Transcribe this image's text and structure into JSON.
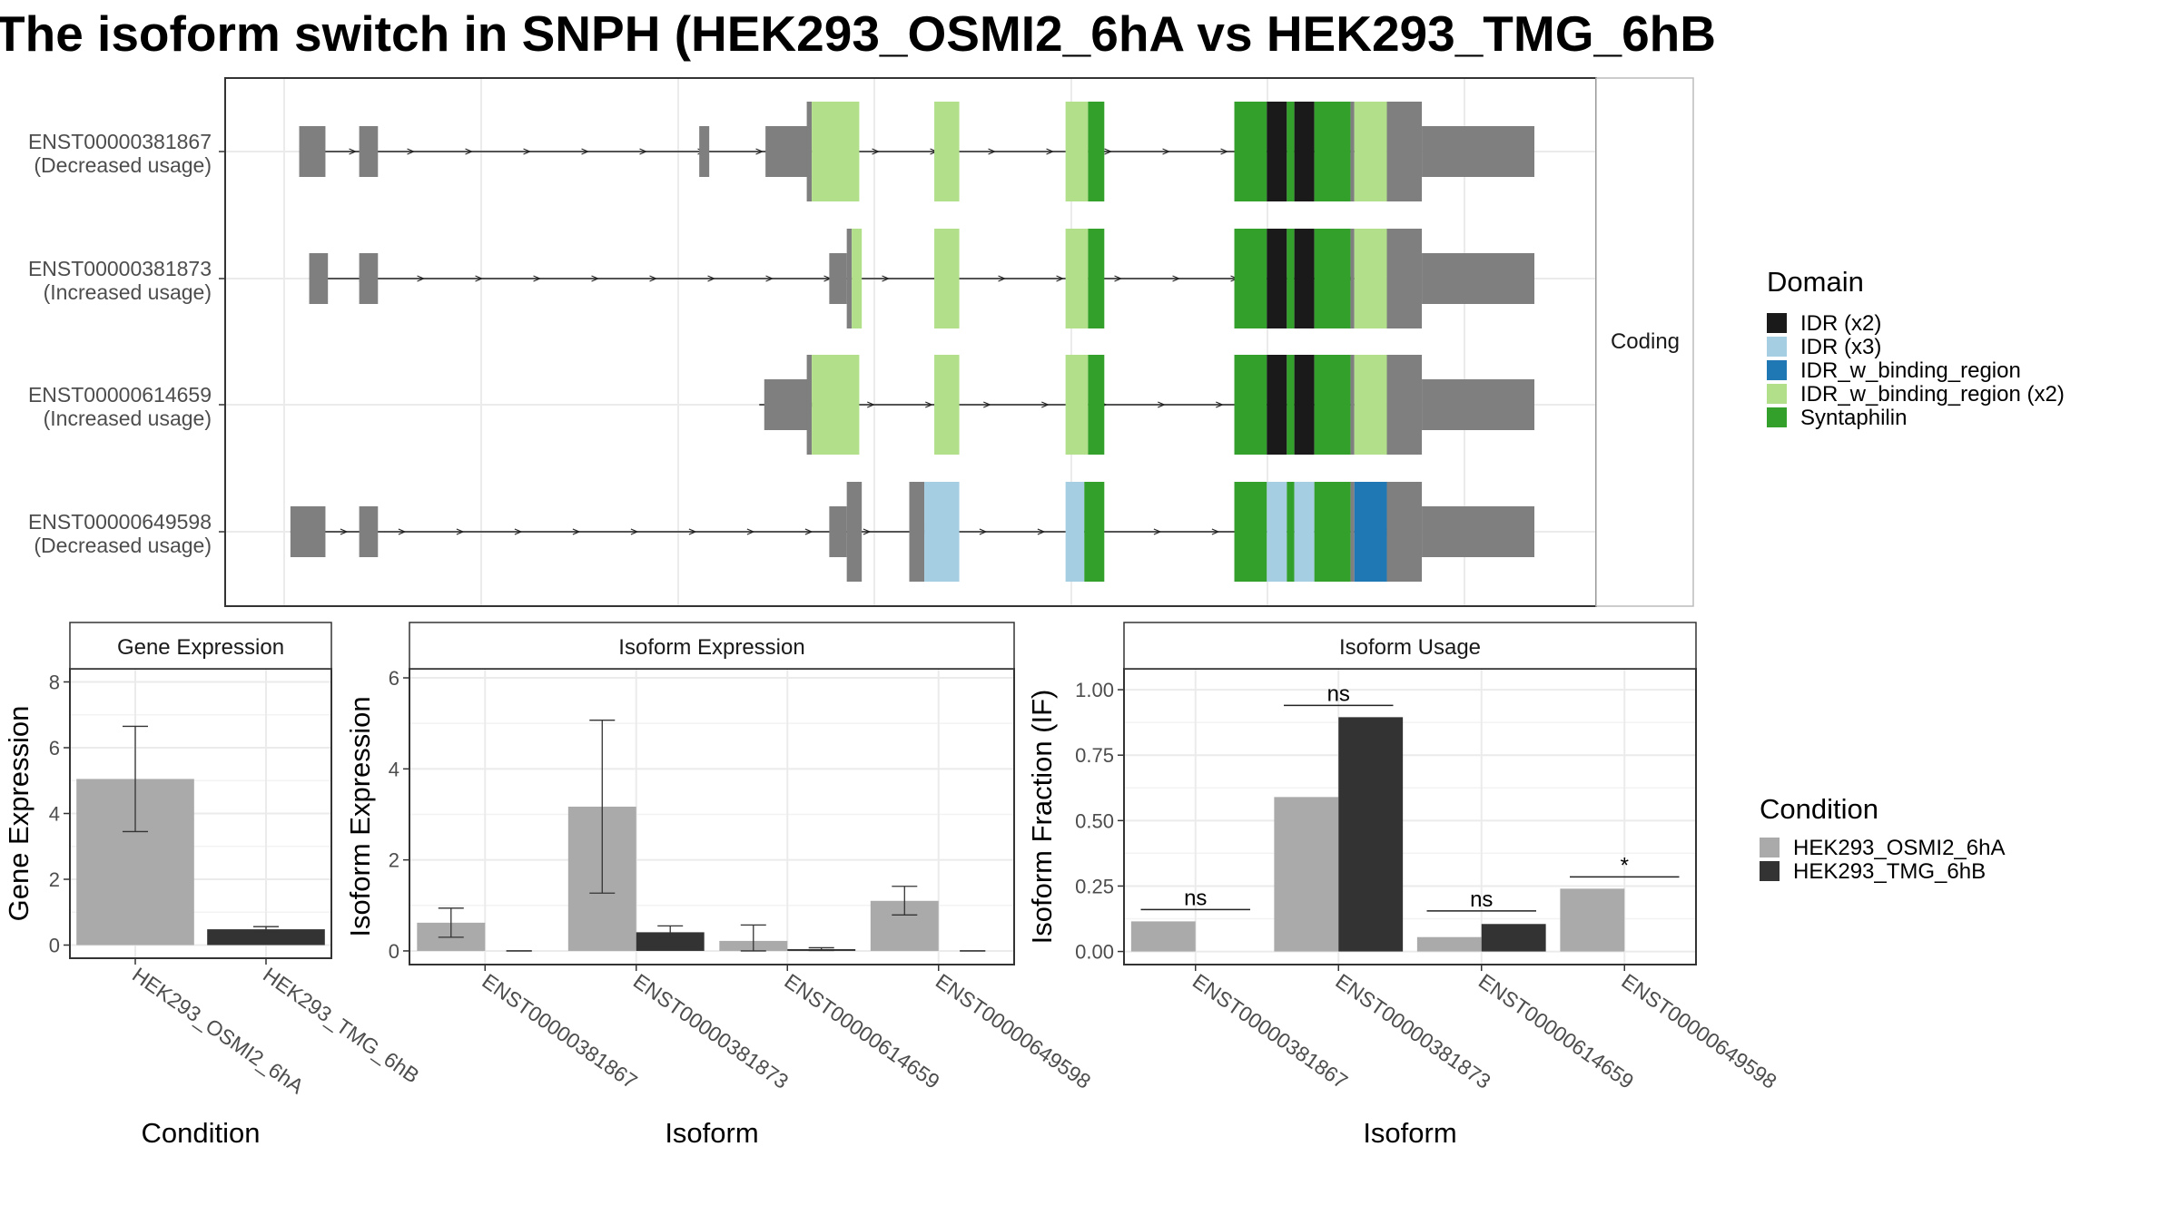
{
  "title": "The isoform switch in SNPH (HEK293_OSMI2_6hA vs HEK293_TMG_6hB",
  "colors": {
    "intron": "#222222",
    "utr": "#7f7f7f",
    "cond_a": "#aaaaaa",
    "cond_b": "#333333",
    "grid": "#ebebeb",
    "panel_border": "#333333",
    "strip_fill": "#ffffff"
  },
  "structure": {
    "facet_label": "Coding",
    "legend_title": "Domain",
    "domains": [
      {
        "name": "IDR (x2)",
        "color": "#1a1a1a"
      },
      {
        "name": "IDR (x3)",
        "color": "#a6cee3"
      },
      {
        "name": "IDR_w_binding_region",
        "color": "#1f78b4"
      },
      {
        "name": "IDR_w_binding_region (x2)",
        "color": "#b2df8a"
      },
      {
        "name": "Syntaphilin",
        "color": "#33a02c"
      }
    ],
    "transcripts": [
      {
        "id": "ENST00000381867",
        "usage": "(Decreased usage)",
        "intron_range": [
          0.012,
          0.91
        ],
        "segments": [
          {
            "type": "utr",
            "start": 0.012,
            "end": 0.033
          },
          {
            "type": "utr",
            "start": 0.06,
            "end": 0.075
          },
          {
            "type": "utr",
            "start": 0.332,
            "end": 0.34
          },
          {
            "type": "utr",
            "start": 0.385,
            "end": 0.42
          },
          {
            "type": "cds",
            "start": 0.418,
            "end": 0.422,
            "domain": "utr"
          },
          {
            "type": "cds",
            "start": 0.422,
            "end": 0.46,
            "domain": "IDR_w_binding_region (x2)"
          },
          {
            "type": "cds",
            "start": 0.52,
            "end": 0.54,
            "domain": "IDR_w_binding_region (x2)"
          },
          {
            "type": "cds",
            "start": 0.625,
            "end": 0.643,
            "domain": "IDR_w_binding_region (x2)"
          },
          {
            "type": "cds",
            "start": 0.643,
            "end": 0.656,
            "domain": "Syntaphilin"
          },
          {
            "type": "cds",
            "start": 0.76,
            "end": 0.786,
            "domain": "Syntaphilin"
          },
          {
            "type": "cds",
            "start": 0.786,
            "end": 0.802,
            "domain": "IDR (x2)"
          },
          {
            "type": "cds",
            "start": 0.802,
            "end": 0.808,
            "domain": "Syntaphilin"
          },
          {
            "type": "cds",
            "start": 0.808,
            "end": 0.824,
            "domain": "IDR (x2)"
          },
          {
            "type": "cds",
            "start": 0.824,
            "end": 0.853,
            "domain": "Syntaphilin"
          },
          {
            "type": "cds",
            "start": 0.853,
            "end": 0.856,
            "domain": "utr"
          },
          {
            "type": "cds",
            "start": 0.856,
            "end": 0.882,
            "domain": "IDR_w_binding_region (x2)"
          },
          {
            "type": "cds",
            "start": 0.882,
            "end": 0.91,
            "domain": "utr"
          },
          {
            "type": "utr",
            "start": 0.91,
            "end": 1.0
          }
        ]
      },
      {
        "id": "ENST00000381873",
        "usage": "(Increased usage)",
        "intron_range": [
          0.02,
          0.91
        ],
        "segments": [
          {
            "type": "utr",
            "start": 0.02,
            "end": 0.035
          },
          {
            "type": "utr",
            "start": 0.06,
            "end": 0.075
          },
          {
            "type": "utr",
            "start": 0.436,
            "end": 0.45
          },
          {
            "type": "cds",
            "start": 0.45,
            "end": 0.454,
            "domain": "utr"
          },
          {
            "type": "cds",
            "start": 0.454,
            "end": 0.462,
            "domain": "IDR_w_binding_region (x2)"
          },
          {
            "type": "cds",
            "start": 0.52,
            "end": 0.54,
            "domain": "IDR_w_binding_region (x2)"
          },
          {
            "type": "cds",
            "start": 0.625,
            "end": 0.643,
            "domain": "IDR_w_binding_region (x2)"
          },
          {
            "type": "cds",
            "start": 0.643,
            "end": 0.656,
            "domain": "Syntaphilin"
          },
          {
            "type": "cds",
            "start": 0.76,
            "end": 0.786,
            "domain": "Syntaphilin"
          },
          {
            "type": "cds",
            "start": 0.786,
            "end": 0.802,
            "domain": "IDR (x2)"
          },
          {
            "type": "cds",
            "start": 0.802,
            "end": 0.808,
            "domain": "Syntaphilin"
          },
          {
            "type": "cds",
            "start": 0.808,
            "end": 0.824,
            "domain": "IDR (x2)"
          },
          {
            "type": "cds",
            "start": 0.824,
            "end": 0.853,
            "domain": "Syntaphilin"
          },
          {
            "type": "cds",
            "start": 0.853,
            "end": 0.856,
            "domain": "utr"
          },
          {
            "type": "cds",
            "start": 0.856,
            "end": 0.882,
            "domain": "IDR_w_binding_region (x2)"
          },
          {
            "type": "cds",
            "start": 0.882,
            "end": 0.91,
            "domain": "utr"
          },
          {
            "type": "utr",
            "start": 0.91,
            "end": 1.0
          }
        ]
      },
      {
        "id": "ENST00000614659",
        "usage": "(Increased usage)",
        "intron_range": [
          0.38,
          0.91
        ],
        "segments": [
          {
            "type": "utr",
            "start": 0.384,
            "end": 0.42
          },
          {
            "type": "cds",
            "start": 0.418,
            "end": 0.422,
            "domain": "utr"
          },
          {
            "type": "cds",
            "start": 0.422,
            "end": 0.46,
            "domain": "IDR_w_binding_region (x2)"
          },
          {
            "type": "cds",
            "start": 0.52,
            "end": 0.54,
            "domain": "IDR_w_binding_region (x2)"
          },
          {
            "type": "cds",
            "start": 0.625,
            "end": 0.643,
            "domain": "IDR_w_binding_region (x2)"
          },
          {
            "type": "cds",
            "start": 0.643,
            "end": 0.656,
            "domain": "Syntaphilin"
          },
          {
            "type": "cds",
            "start": 0.76,
            "end": 0.786,
            "domain": "Syntaphilin"
          },
          {
            "type": "cds",
            "start": 0.786,
            "end": 0.802,
            "domain": "IDR (x2)"
          },
          {
            "type": "cds",
            "start": 0.802,
            "end": 0.808,
            "domain": "Syntaphilin"
          },
          {
            "type": "cds",
            "start": 0.808,
            "end": 0.824,
            "domain": "IDR (x2)"
          },
          {
            "type": "cds",
            "start": 0.824,
            "end": 0.853,
            "domain": "Syntaphilin"
          },
          {
            "type": "cds",
            "start": 0.853,
            "end": 0.856,
            "domain": "utr"
          },
          {
            "type": "cds",
            "start": 0.856,
            "end": 0.882,
            "domain": "IDR_w_binding_region (x2)"
          },
          {
            "type": "cds",
            "start": 0.882,
            "end": 0.91,
            "domain": "utr"
          },
          {
            "type": "utr",
            "start": 0.91,
            "end": 1.0
          }
        ]
      },
      {
        "id": "ENST00000649598",
        "usage": "(Decreased usage)",
        "intron_range": [
          0.005,
          0.91
        ],
        "segments": [
          {
            "type": "utr",
            "start": 0.005,
            "end": 0.033
          },
          {
            "type": "utr",
            "start": 0.06,
            "end": 0.075
          },
          {
            "type": "utr",
            "start": 0.436,
            "end": 0.45
          },
          {
            "type": "cds",
            "start": 0.45,
            "end": 0.462,
            "domain": "utr"
          },
          {
            "type": "cds",
            "start": 0.5,
            "end": 0.512,
            "domain": "utr"
          },
          {
            "type": "cds",
            "start": 0.512,
            "end": 0.54,
            "domain": "IDR (x3)"
          },
          {
            "type": "cds",
            "start": 0.625,
            "end": 0.64,
            "domain": "IDR (x3)"
          },
          {
            "type": "cds",
            "start": 0.64,
            "end": 0.656,
            "domain": "Syntaphilin"
          },
          {
            "type": "cds",
            "start": 0.76,
            "end": 0.786,
            "domain": "Syntaphilin"
          },
          {
            "type": "cds",
            "start": 0.786,
            "end": 0.802,
            "domain": "IDR (x3)"
          },
          {
            "type": "cds",
            "start": 0.802,
            "end": 0.808,
            "domain": "Syntaphilin"
          },
          {
            "type": "cds",
            "start": 0.808,
            "end": 0.824,
            "domain": "IDR (x3)"
          },
          {
            "type": "cds",
            "start": 0.824,
            "end": 0.853,
            "domain": "Syntaphilin"
          },
          {
            "type": "cds",
            "start": 0.853,
            "end": 0.856,
            "domain": "utr"
          },
          {
            "type": "cds",
            "start": 0.856,
            "end": 0.882,
            "domain": "IDR_w_binding_region"
          },
          {
            "type": "cds",
            "start": 0.882,
            "end": 0.91,
            "domain": "utr"
          },
          {
            "type": "utr",
            "start": 0.91,
            "end": 1.0
          }
        ]
      }
    ]
  },
  "chart_data": [
    {
      "type": "bar",
      "panel": "Gene Expression",
      "categories": [
        "HEK293_OSMI2_6hA",
        "HEK293_TMG_6hB"
      ],
      "values": [
        5.05,
        0.48
      ],
      "error": [
        [
          3.45,
          6.65
        ],
        [
          0.4,
          0.56
        ]
      ],
      "xlabel": "Condition",
      "ylabel": "Gene Expression",
      "ylim": [
        -0.4,
        8.4
      ],
      "yticks": [
        0,
        2,
        4,
        6,
        8
      ]
    },
    {
      "type": "bar",
      "panel": "Isoform Expression",
      "categories": [
        "ENST00000381867",
        "ENST00000381873",
        "ENST00000614659",
        "ENST00000649598"
      ],
      "series": [
        {
          "name": "HEK293_OSMI2_6hA",
          "values": [
            0.62,
            3.17,
            0.22,
            1.1
          ],
          "error": [
            [
              0.3,
              0.94
            ],
            [
              1.27,
              5.07
            ],
            [
              0.0,
              0.57
            ],
            [
              0.79,
              1.42
            ]
          ]
        },
        {
          "name": "HEK293_TMG_6hB",
          "values": [
            0.0,
            0.41,
            0.04,
            0.0
          ],
          "error": [
            [
              0.0,
              0.0
            ],
            [
              0.28,
              0.55
            ],
            [
              0.01,
              0.07
            ],
            [
              0.0,
              0.0
            ]
          ]
        }
      ],
      "xlabel": "Isoform",
      "ylabel": "Isoform Expression",
      "ylim": [
        -0.3,
        6.2
      ],
      "yticks": [
        0,
        2,
        4,
        6
      ]
    },
    {
      "type": "bar",
      "panel": "Isoform Usage",
      "categories": [
        "ENST00000381867",
        "ENST00000381873",
        "ENST00000614659",
        "ENST00000649598"
      ],
      "series": [
        {
          "name": "HEK293_OSMI2_6hA",
          "values": [
            0.115,
            0.59,
            0.055,
            0.24
          ]
        },
        {
          "name": "HEK293_TMG_6hB",
          "values": [
            0.0,
            0.895,
            0.105,
            0.0
          ]
        }
      ],
      "significance": [
        {
          "label": "ns",
          "level": 0.16
        },
        {
          "label": "ns",
          "level": 0.94
        },
        {
          "label": "ns",
          "level": 0.155
        },
        {
          "label": "*",
          "level": 0.285
        }
      ],
      "xlabel": "Isoform",
      "ylabel": "Isoform Fraction (IF)",
      "ylim": [
        -0.05,
        1.08
      ],
      "yticks": [
        0.0,
        0.25,
        0.5,
        0.75,
        1.0
      ],
      "ytick_labels": [
        "0.00",
        "0.25",
        "0.50",
        "0.75",
        "1.00"
      ]
    }
  ],
  "condition_legend": {
    "title": "Condition",
    "items": [
      {
        "name": "HEK293_OSMI2_6hA",
        "color": "#aaaaaa"
      },
      {
        "name": "HEK293_TMG_6hB",
        "color": "#333333"
      }
    ]
  }
}
